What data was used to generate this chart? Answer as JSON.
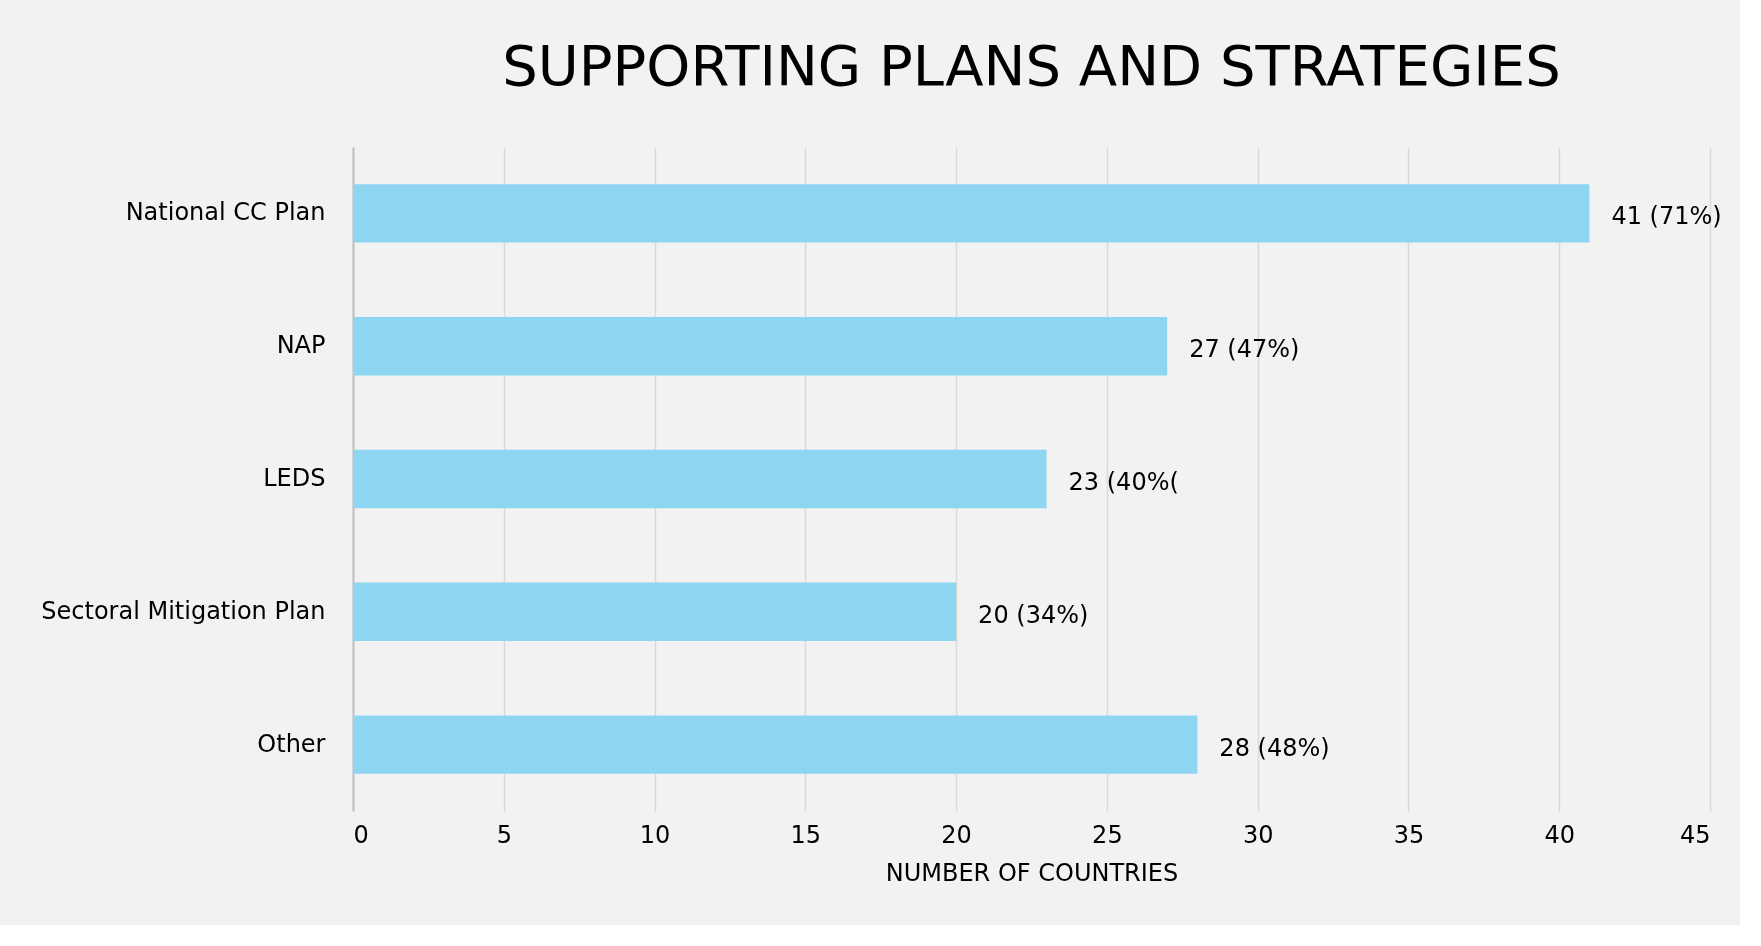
{
  "chart_data": {
    "type": "bar",
    "orientation": "horizontal",
    "title": "SUPPORTING PLANS AND STRATEGIES",
    "xlabel": "NUMBER OF COUNTRIES",
    "categories": [
      "National CC Plan",
      "NAP",
      "LEDS",
      "Sectoral Mitigation Plan",
      "Other"
    ],
    "values": [
      41,
      27,
      23,
      20,
      28
    ],
    "value_labels": [
      "41 (71%)",
      "27 (47%)",
      "23 (40%(",
      "20 (34%)",
      "28 (48%)"
    ],
    "color": "#8dd5f0",
    "xlim": [
      0,
      45
    ],
    "xticks": [
      0,
      5,
      10,
      15,
      20,
      25,
      30,
      35,
      40,
      45
    ],
    "grid": "x"
  }
}
